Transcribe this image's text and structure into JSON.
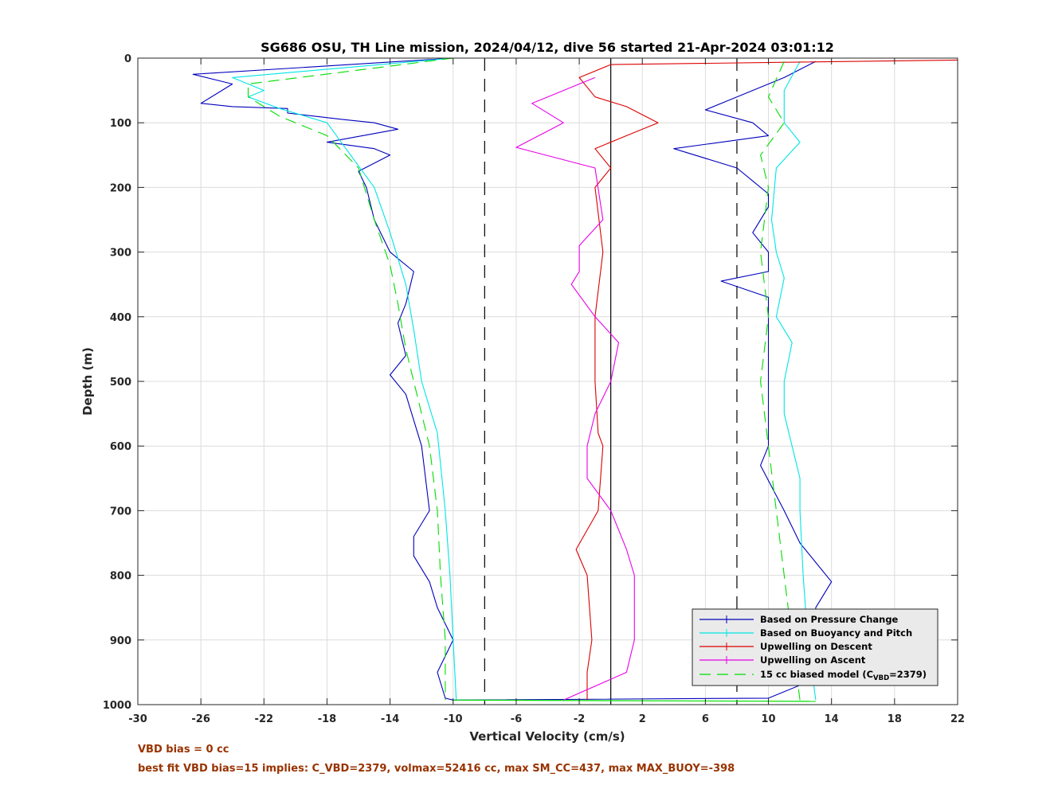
{
  "chart_data": {
    "type": "line",
    "title": "SG686 OSU, TH Line mission, 2024/04/12, dive 56 started 21-Apr-2024 03:01:12",
    "xlabel": "Vertical Velocity (cm/s)",
    "ylabel": "Depth (m)",
    "xlim": [
      -30,
      22
    ],
    "ylim": [
      1000,
      0
    ],
    "y_reversed": true,
    "grid": true,
    "x_ticks": [
      "-30",
      "-26",
      "-22",
      "-18",
      "-14",
      "-10",
      "-6",
      "-2",
      "2",
      "6",
      "10",
      "14",
      "18",
      "22"
    ],
    "y_ticks": [
      "0",
      "100",
      "200",
      "300",
      "400",
      "500",
      "600",
      "700",
      "800",
      "900",
      "1000"
    ],
    "legend_placement": "bottom-right",
    "reference_lines": [
      {
        "x": 0,
        "style": "solid",
        "color": "#000000"
      },
      {
        "x": -8,
        "style": "dashed",
        "color": "#000000"
      },
      {
        "x": 8,
        "style": "dashed",
        "color": "#000000"
      }
    ],
    "series": [
      {
        "name": "Based on Pressure Change",
        "color": "#0000bb",
        "style": "solid",
        "group": "descent",
        "points": [
          [
            -10,
            0
          ],
          [
            -26.5,
            25
          ],
          [
            -24,
            40
          ],
          [
            -26,
            70
          ],
          [
            -24,
            75
          ],
          [
            -20.5,
            78
          ],
          [
            -20.5,
            85
          ],
          [
            -17,
            95
          ],
          [
            -15,
            100
          ],
          [
            -13.5,
            110
          ],
          [
            -18,
            130
          ],
          [
            -15,
            140
          ],
          [
            -14,
            150
          ],
          [
            -16,
            175
          ],
          [
            -15.5,
            200
          ],
          [
            -15,
            250
          ],
          [
            -14,
            300
          ],
          [
            -12.5,
            330
          ],
          [
            -13,
            380
          ],
          [
            -13.5,
            410
          ],
          [
            -13,
            460
          ],
          [
            -14,
            490
          ],
          [
            -13,
            520
          ],
          [
            -12.5,
            560
          ],
          [
            -12,
            600
          ],
          [
            -11.5,
            700
          ],
          [
            -12.5,
            740
          ],
          [
            -12.5,
            770
          ],
          [
            -11.5,
            810
          ],
          [
            -11,
            850
          ],
          [
            -10,
            900
          ],
          [
            -11,
            950
          ],
          [
            -10.5,
            990
          ],
          [
            -10,
            993
          ]
        ]
      },
      {
        "name": "Based on Pressure Change",
        "color": "#0000bb",
        "style": "solid",
        "group": "ascent",
        "points": [
          [
            13,
            5
          ],
          [
            11,
            30
          ],
          [
            8,
            60
          ],
          [
            6,
            80
          ],
          [
            9,
            100
          ],
          [
            10,
            120
          ],
          [
            4,
            140
          ],
          [
            8,
            170
          ],
          [
            9,
            190
          ],
          [
            10,
            210
          ],
          [
            10,
            230
          ],
          [
            9,
            270
          ],
          [
            10,
            300
          ],
          [
            10,
            330
          ],
          [
            7,
            345
          ],
          [
            10,
            370
          ],
          [
            10,
            420
          ],
          [
            10,
            500
          ],
          [
            10,
            550
          ],
          [
            10,
            600
          ],
          [
            9.5,
            630
          ],
          [
            11,
            700
          ],
          [
            12,
            750
          ],
          [
            13,
            780
          ],
          [
            14,
            810
          ],
          [
            13,
            850
          ],
          [
            13,
            900
          ],
          [
            13,
            960
          ],
          [
            10,
            990
          ],
          [
            -10,
            993
          ]
        ]
      },
      {
        "name": "Based on Buoyancy and Pitch",
        "color": "#00e5e5",
        "style": "solid",
        "group": "descent",
        "points": [
          [
            -10,
            0
          ],
          [
            -24,
            30
          ],
          [
            -22,
            50
          ],
          [
            -23,
            60
          ],
          [
            -21,
            78
          ],
          [
            -18,
            100
          ],
          [
            -16.5,
            150
          ],
          [
            -15,
            200
          ],
          [
            -14,
            270
          ],
          [
            -13,
            350
          ],
          [
            -12.5,
            420
          ],
          [
            -12,
            500
          ],
          [
            -11,
            580
          ],
          [
            -10.5,
            700
          ],
          [
            -10.2,
            800
          ],
          [
            -10,
            900
          ],
          [
            -9.8,
            993
          ]
        ]
      },
      {
        "name": "Based on Buoyancy and Pitch",
        "color": "#00e5e5",
        "style": "solid",
        "group": "ascent",
        "points": [
          [
            12,
            5
          ],
          [
            11,
            50
          ],
          [
            11,
            100
          ],
          [
            12,
            130
          ],
          [
            10.5,
            170
          ],
          [
            10.2,
            250
          ],
          [
            10.5,
            300
          ],
          [
            11,
            340
          ],
          [
            10.5,
            400
          ],
          [
            11.5,
            440
          ],
          [
            11,
            500
          ],
          [
            11,
            550
          ],
          [
            11.5,
            600
          ],
          [
            12,
            650
          ],
          [
            12,
            700
          ],
          [
            12.2,
            800
          ],
          [
            12.5,
            900
          ],
          [
            13,
            993
          ]
        ]
      },
      {
        "name": "Upwelling on Descent",
        "color": "#dd0000",
        "style": "solid",
        "group": "descent",
        "points": [
          [
            22,
            3
          ],
          [
            0,
            10
          ],
          [
            -2,
            30
          ],
          [
            -1,
            60
          ],
          [
            1,
            75
          ],
          [
            3,
            100
          ],
          [
            1,
            120
          ],
          [
            -1,
            140
          ],
          [
            0,
            170
          ],
          [
            -1,
            200
          ],
          [
            -0.5,
            300
          ],
          [
            -1,
            400
          ],
          [
            -1,
            500
          ],
          [
            -0.8,
            580
          ],
          [
            -0.5,
            600
          ],
          [
            -0.8,
            700
          ],
          [
            -2.2,
            760
          ],
          [
            -1.5,
            800
          ],
          [
            -1.2,
            900
          ],
          [
            -1.5,
            950
          ],
          [
            -1.5,
            993
          ]
        ]
      },
      {
        "name": "Upwelling on Ascent",
        "color": "#e800e8",
        "style": "solid",
        "group": "ascent",
        "points": [
          [
            -1,
            30
          ],
          [
            -4,
            60
          ],
          [
            -5,
            70
          ],
          [
            -3,
            100
          ],
          [
            -6,
            138
          ],
          [
            -1,
            170
          ],
          [
            -0.5,
            250
          ],
          [
            -2,
            290
          ],
          [
            -2,
            330
          ],
          [
            -2.5,
            350
          ],
          [
            -1,
            400
          ],
          [
            0.5,
            440
          ],
          [
            0,
            500
          ],
          [
            -1,
            550
          ],
          [
            -1.5,
            600
          ],
          [
            -1.5,
            650
          ],
          [
            0,
            700
          ],
          [
            1,
            760
          ],
          [
            1.5,
            800
          ],
          [
            1.5,
            900
          ],
          [
            1,
            950
          ],
          [
            -3,
            993
          ]
        ]
      },
      {
        "name": "15 cc biased model (C_VBD=2379)",
        "color": "#00dd00",
        "style": "dashed",
        "group": "descent",
        "points": [
          [
            -10,
            0
          ],
          [
            -23,
            40
          ],
          [
            -23,
            60
          ],
          [
            -21,
            90
          ],
          [
            -18,
            120
          ],
          [
            -16,
            170
          ],
          [
            -15,
            250
          ],
          [
            -14,
            320
          ],
          [
            -13.5,
            380
          ],
          [
            -13,
            450
          ],
          [
            -12,
            550
          ],
          [
            -11.5,
            600
          ],
          [
            -11,
            700
          ],
          [
            -10.8,
            800
          ],
          [
            -10.5,
            900
          ],
          [
            -10.5,
            993
          ]
        ]
      },
      {
        "name": "15 cc biased model (C_VBD=2379)",
        "color": "#00dd00",
        "style": "dashed",
        "group": "ascent",
        "points": [
          [
            11,
            5
          ],
          [
            10,
            60
          ],
          [
            11,
            100
          ],
          [
            9.5,
            150
          ],
          [
            10,
            200
          ],
          [
            9.5,
            300
          ],
          [
            10,
            400
          ],
          [
            9.5,
            500
          ],
          [
            10,
            600
          ],
          [
            10.5,
            700
          ],
          [
            11,
            800
          ],
          [
            11.5,
            900
          ],
          [
            12,
            993
          ]
        ]
      }
    ],
    "bottom_spike": {
      "color": "#00dd00",
      "points": [
        [
          -10,
          993
        ],
        [
          13,
          995
        ]
      ]
    }
  },
  "legend": {
    "items": [
      {
        "label": "Based on Pressure Change",
        "color": "#0000bb",
        "style": "solid"
      },
      {
        "label": "Based on Buoyancy and Pitch",
        "color": "#00e5e5",
        "style": "solid"
      },
      {
        "label": "Upwelling on Descent",
        "color": "#dd0000",
        "style": "solid"
      },
      {
        "label": "Upwelling on Ascent",
        "color": "#e800e8",
        "style": "solid"
      },
      {
        "label_main": "15 cc biased model (C",
        "label_sub": "VBD",
        "label_tail": "=2379)",
        "color": "#00dd00",
        "style": "dashed"
      }
    ]
  },
  "notes": {
    "vbd_bias": "VBD bias = 0 cc",
    "best_fit": "best fit VBD bias=15 implies: C_VBD=2379, volmax=52416 cc, max SM_CC=437, max MAX_BUOY=-398",
    "color": "#993300"
  }
}
